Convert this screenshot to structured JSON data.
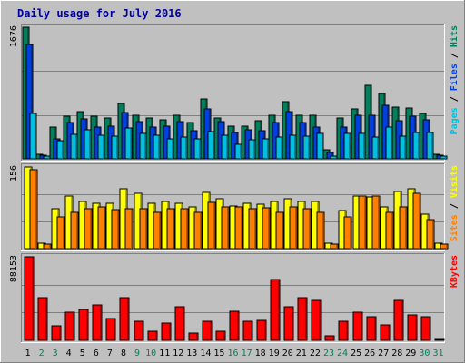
{
  "chart_data": {
    "type": "bar",
    "title": "Daily usage for July 2016",
    "categories": [
      "1",
      "2",
      "3",
      "4",
      "5",
      "6",
      "7",
      "8",
      "9",
      "10",
      "11",
      "12",
      "13",
      "14",
      "15",
      "16",
      "17",
      "18",
      "19",
      "20",
      "21",
      "22",
      "23",
      "24",
      "25",
      "26",
      "27",
      "28",
      "29",
      "30",
      "31"
    ],
    "weekend_days": [
      "2",
      "3",
      "9",
      "10",
      "16",
      "17",
      "23",
      "24",
      "30",
      "31"
    ],
    "panels": [
      {
        "name": "hits_files_pages",
        "ymax": 1676,
        "tick_label": "1676",
        "legend": [
          {
            "text": "Pages",
            "color": "#00c0e0"
          },
          {
            "text": " / ",
            "color": "#000000"
          },
          {
            "text": "Files",
            "color": "#0040e0"
          },
          {
            "text": " / ",
            "color": "#000000"
          },
          {
            "text": "Hits",
            "color": "#00805c"
          }
        ],
        "series": [
          {
            "name": "Hits",
            "color": "#00805c",
            "values": [
              1676,
              60,
              400,
              540,
              600,
              540,
              520,
              700,
              560,
              520,
              500,
              550,
              460,
              760,
              520,
              420,
              420,
              490,
              550,
              730,
              550,
              560,
              110,
              520,
              640,
              940,
              830,
              660,
              650,
              580,
              60
            ]
          },
          {
            "name": "Files",
            "color": "#0040e0",
            "values": [
              1460,
              50,
              250,
              460,
              510,
              400,
              420,
              590,
              470,
              410,
              420,
              470,
              360,
              630,
              470,
              330,
              370,
              360,
              460,
              600,
              460,
              400,
              80,
              400,
              560,
              560,
              680,
              480,
              540,
              500,
              50
            ]
          },
          {
            "name": "Pages",
            "color": "#00c0e0",
            "values": [
              580,
              40,
              230,
              310,
              370,
              300,
              290,
              390,
              320,
              300,
              260,
              280,
              250,
              350,
              300,
              180,
              240,
              260,
              280,
              300,
              290,
              320,
              40,
              320,
              320,
              280,
              400,
              290,
              340,
              340,
              40
            ]
          }
        ]
      },
      {
        "name": "visits_sites",
        "ymax": 156,
        "tick_label": "156",
        "legend": [
          {
            "text": "Sites",
            "color": "#ff8000"
          },
          {
            "text": " / ",
            "color": "#000000"
          },
          {
            "text": "Visits",
            "color": "#ffff00"
          }
        ],
        "series": [
          {
            "name": "Visits",
            "color": "#ffff00",
            "values": [
              156,
              10,
              76,
              100,
              90,
              86,
              86,
              115,
              106,
              86,
              90,
              86,
              80,
              108,
              96,
              82,
              86,
              85,
              90,
              96,
              90,
              90,
              10,
              72,
              100,
              98,
              80,
              110,
              115,
              66,
              10
            ]
          },
          {
            "name": "Sites",
            "color": "#ff8000",
            "values": [
              150,
              8,
              60,
              70,
              76,
              80,
              75,
              76,
              76,
              70,
              76,
              76,
              70,
              88,
              80,
              80,
              76,
              78,
              70,
              80,
              76,
              70,
              8,
              60,
              100,
              100,
              70,
              80,
              105,
              55,
              8
            ]
          }
        ]
      },
      {
        "name": "kbytes",
        "ymax": 88153,
        "tick_label": "88153",
        "legend": [
          {
            "text": "KBytes",
            "color": "#ff0000"
          }
        ],
        "series": [
          {
            "name": "KBytes",
            "color": "#ff0000",
            "values": [
              88153,
              45000,
              15000,
              30000,
              33000,
              37000,
              23000,
              45000,
              20000,
              10000,
              18000,
              35000,
              8000,
              20000,
              10000,
              31000,
              20000,
              21000,
              64000,
              35000,
              45000,
              42000,
              5000,
              20000,
              30000,
              25000,
              16000,
              42000,
              27000,
              25000,
              1000
            ]
          }
        ]
      }
    ]
  }
}
